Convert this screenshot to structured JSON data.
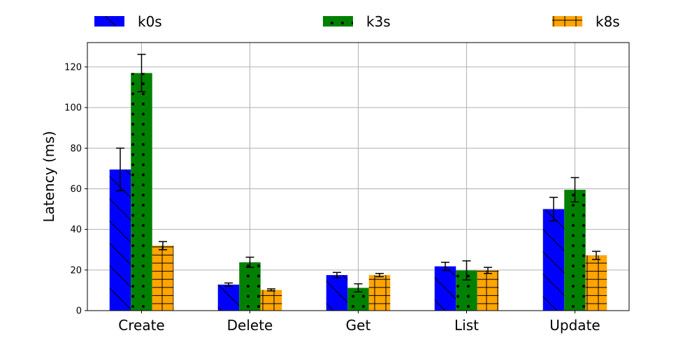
{
  "chart_data": {
    "type": "bar",
    "categories": [
      "Create",
      "Delete",
      "Get",
      "List",
      "Update"
    ],
    "series": [
      {
        "name": "k0s",
        "values": [
          69.5,
          12.8,
          17.5,
          21.8,
          50.0
        ],
        "errors": [
          10.5,
          0.8,
          1.3,
          2.0,
          5.8
        ],
        "color": "#0000ff",
        "hatch": "diagonal"
      },
      {
        "name": "k3s",
        "values": [
          117.0,
          23.8,
          11.2,
          19.8,
          59.5
        ],
        "errors": [
          9.2,
          2.5,
          2.0,
          4.7,
          6.0
        ],
        "color": "#008000",
        "hatch": "dots"
      },
      {
        "name": "k8s",
        "values": [
          32.0,
          10.2,
          17.5,
          19.8,
          27.2
        ],
        "errors": [
          2.0,
          0.5,
          0.8,
          1.5,
          2.0
        ],
        "color": "#ffa500",
        "hatch": "grid"
      }
    ],
    "ylabel": "Latency (ms)",
    "xlabel": "",
    "ylim": [
      0,
      132
    ],
    "yticks": [
      0,
      20,
      40,
      60,
      80,
      100,
      120
    ],
    "grid": true,
    "legend_position": "top"
  }
}
